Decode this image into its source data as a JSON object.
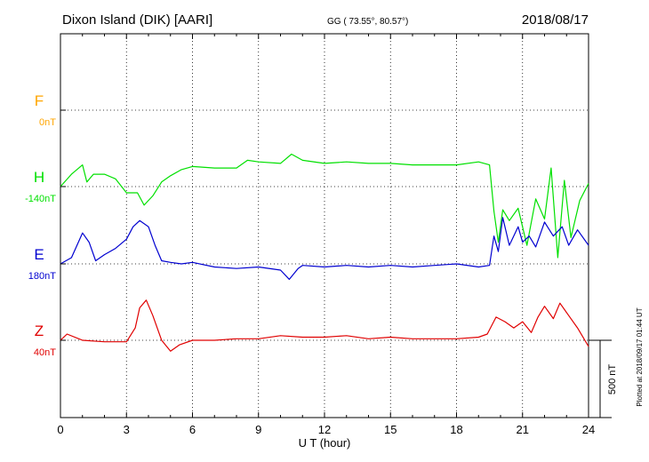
{
  "header": {
    "station": "Dixon Island (DIK)  [AARI]",
    "coordinates": "GG ( 73.55°,  80.57°)",
    "date": "2018/08/17"
  },
  "footer": {
    "plotted": "Plotted at 2018/09/17 01:44 UT"
  },
  "chart_data": {
    "type": "line",
    "title": "Dixon Island (DIK)  [AARI]",
    "xlabel": "U T (hour)",
    "ylabel": "",
    "xlim": [
      0,
      24
    ],
    "x_ticks": [
      0,
      3,
      6,
      9,
      12,
      15,
      18,
      21,
      24
    ],
    "x_tick_labels": [
      "0",
      "3",
      "6",
      "9",
      "12",
      "15",
      "18",
      "21",
      "24"
    ],
    "grid": true,
    "units": "nT",
    "scale_bar": {
      "label": "500 nT",
      "value": 500
    },
    "baseline_spacing_nT": 500,
    "series": [
      {
        "name": "F",
        "baseline_label": "0nT",
        "baseline": 0,
        "color": "#ffa500",
        "x": [],
        "values": []
      },
      {
        "name": "H",
        "baseline_label": "-140nT",
        "baseline": -140,
        "color": "#00e000",
        "x": [
          0,
          0.5,
          1.0,
          1.2,
          1.5,
          2.0,
          2.5,
          3.0,
          3.5,
          3.8,
          4.2,
          4.6,
          5.0,
          5.5,
          6.0,
          7.0,
          8.0,
          8.5,
          9.0,
          10.0,
          10.5,
          11.0,
          12.0,
          13.0,
          14.0,
          15.0,
          16.0,
          17.0,
          18.0,
          19.0,
          19.5,
          19.7,
          19.9,
          20.1,
          20.4,
          20.8,
          21.2,
          21.6,
          22.0,
          22.3,
          22.6,
          22.9,
          23.2,
          23.6,
          24.0
        ],
        "values": [
          -140,
          -60,
          0,
          -110,
          -60,
          -60,
          -90,
          -180,
          -180,
          -260,
          -200,
          -110,
          -70,
          -30,
          -10,
          -20,
          -20,
          30,
          20,
          10,
          70,
          30,
          10,
          20,
          10,
          10,
          0,
          0,
          0,
          20,
          0,
          -300,
          -500,
          -290,
          -360,
          -280,
          -520,
          -220,
          -350,
          -20,
          -600,
          -100,
          -470,
          -230,
          -120
        ]
      },
      {
        "name": "E",
        "baseline_label": "180nT",
        "baseline": 180,
        "color": "#0000d0",
        "x": [
          0,
          0.5,
          1.0,
          1.3,
          1.6,
          2.0,
          2.5,
          3.0,
          3.3,
          3.6,
          4.0,
          4.3,
          4.6,
          5.0,
          5.5,
          6.0,
          7.0,
          8.0,
          9.0,
          10.0,
          10.4,
          10.8,
          11.0,
          12.0,
          13.0,
          14.0,
          15.0,
          16.0,
          17.0,
          18.0,
          19.0,
          19.5,
          19.7,
          19.9,
          20.1,
          20.4,
          20.8,
          21.0,
          21.3,
          21.6,
          22.0,
          22.4,
          22.8,
          23.1,
          23.5,
          24.0
        ],
        "values": [
          180,
          220,
          380,
          320,
          200,
          240,
          280,
          340,
          420,
          460,
          420,
          300,
          200,
          190,
          180,
          190,
          160,
          150,
          160,
          140,
          80,
          150,
          170,
          160,
          170,
          160,
          170,
          160,
          170,
          180,
          160,
          170,
          360,
          260,
          480,
          300,
          420,
          320,
          360,
          290,
          450,
          360,
          420,
          300,
          400,
          300
        ]
      },
      {
        "name": "Z",
        "baseline_label": "40nT",
        "baseline": 40,
        "color": "#e00000",
        "x": [
          0,
          0.3,
          1.0,
          2.0,
          3.0,
          3.4,
          3.6,
          3.9,
          4.2,
          4.6,
          5.0,
          5.4,
          6.0,
          7.0,
          8.0,
          9.0,
          10.0,
          11.0,
          12.0,
          13.0,
          14.0,
          15.0,
          16.0,
          17.0,
          18.0,
          19.0,
          19.4,
          19.8,
          20.2,
          20.6,
          21.0,
          21.4,
          21.7,
          22.0,
          22.4,
          22.7,
          23.1,
          23.5,
          24.0
        ],
        "values": [
          40,
          80,
          40,
          30,
          30,
          120,
          250,
          300,
          200,
          40,
          -30,
          10,
          40,
          40,
          50,
          50,
          70,
          60,
          60,
          70,
          50,
          60,
          50,
          50,
          50,
          60,
          80,
          190,
          160,
          120,
          160,
          90,
          190,
          260,
          180,
          280,
          200,
          120,
          0
        ]
      }
    ]
  }
}
